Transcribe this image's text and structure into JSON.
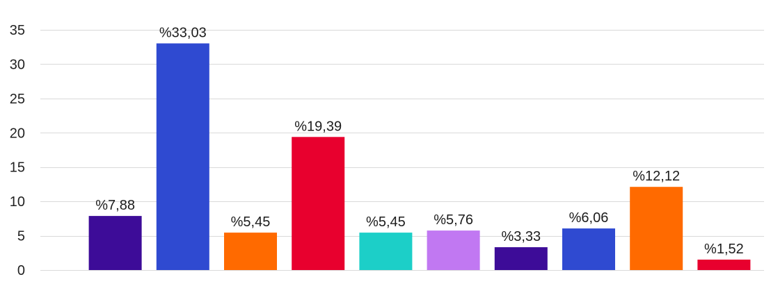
{
  "chart_data": {
    "type": "bar",
    "categories": [
      "",
      "",
      "",
      "",
      "",
      "",
      "",
      "",
      "",
      ""
    ],
    "values": [
      7.88,
      33.03,
      5.45,
      19.39,
      5.45,
      5.76,
      3.33,
      6.06,
      12.12,
      1.52
    ],
    "data_labels": [
      "%7,88",
      "%33,03",
      "%5,45",
      "%19,39",
      "%5,45",
      "%5,76",
      "%3,33",
      "%6,06",
      "%12,12",
      "%1,52"
    ],
    "colors": [
      "#3d0c98",
      "#2f4ad1",
      "#ff6a00",
      "#e8002e",
      "#1ccfc8",
      "#c178f2",
      "#3d0c98",
      "#2f4ad1",
      "#ff6a00",
      "#e8002e"
    ],
    "title": "",
    "xlabel": "",
    "ylabel": "",
    "ylim": [
      0,
      35
    ],
    "yticks": [
      0,
      5,
      10,
      15,
      20,
      25,
      30,
      35
    ],
    "ytick_labels": [
      "0",
      "5",
      "10",
      "15",
      "20",
      "25",
      "30",
      "35"
    ],
    "grid": true,
    "legend": "none"
  }
}
